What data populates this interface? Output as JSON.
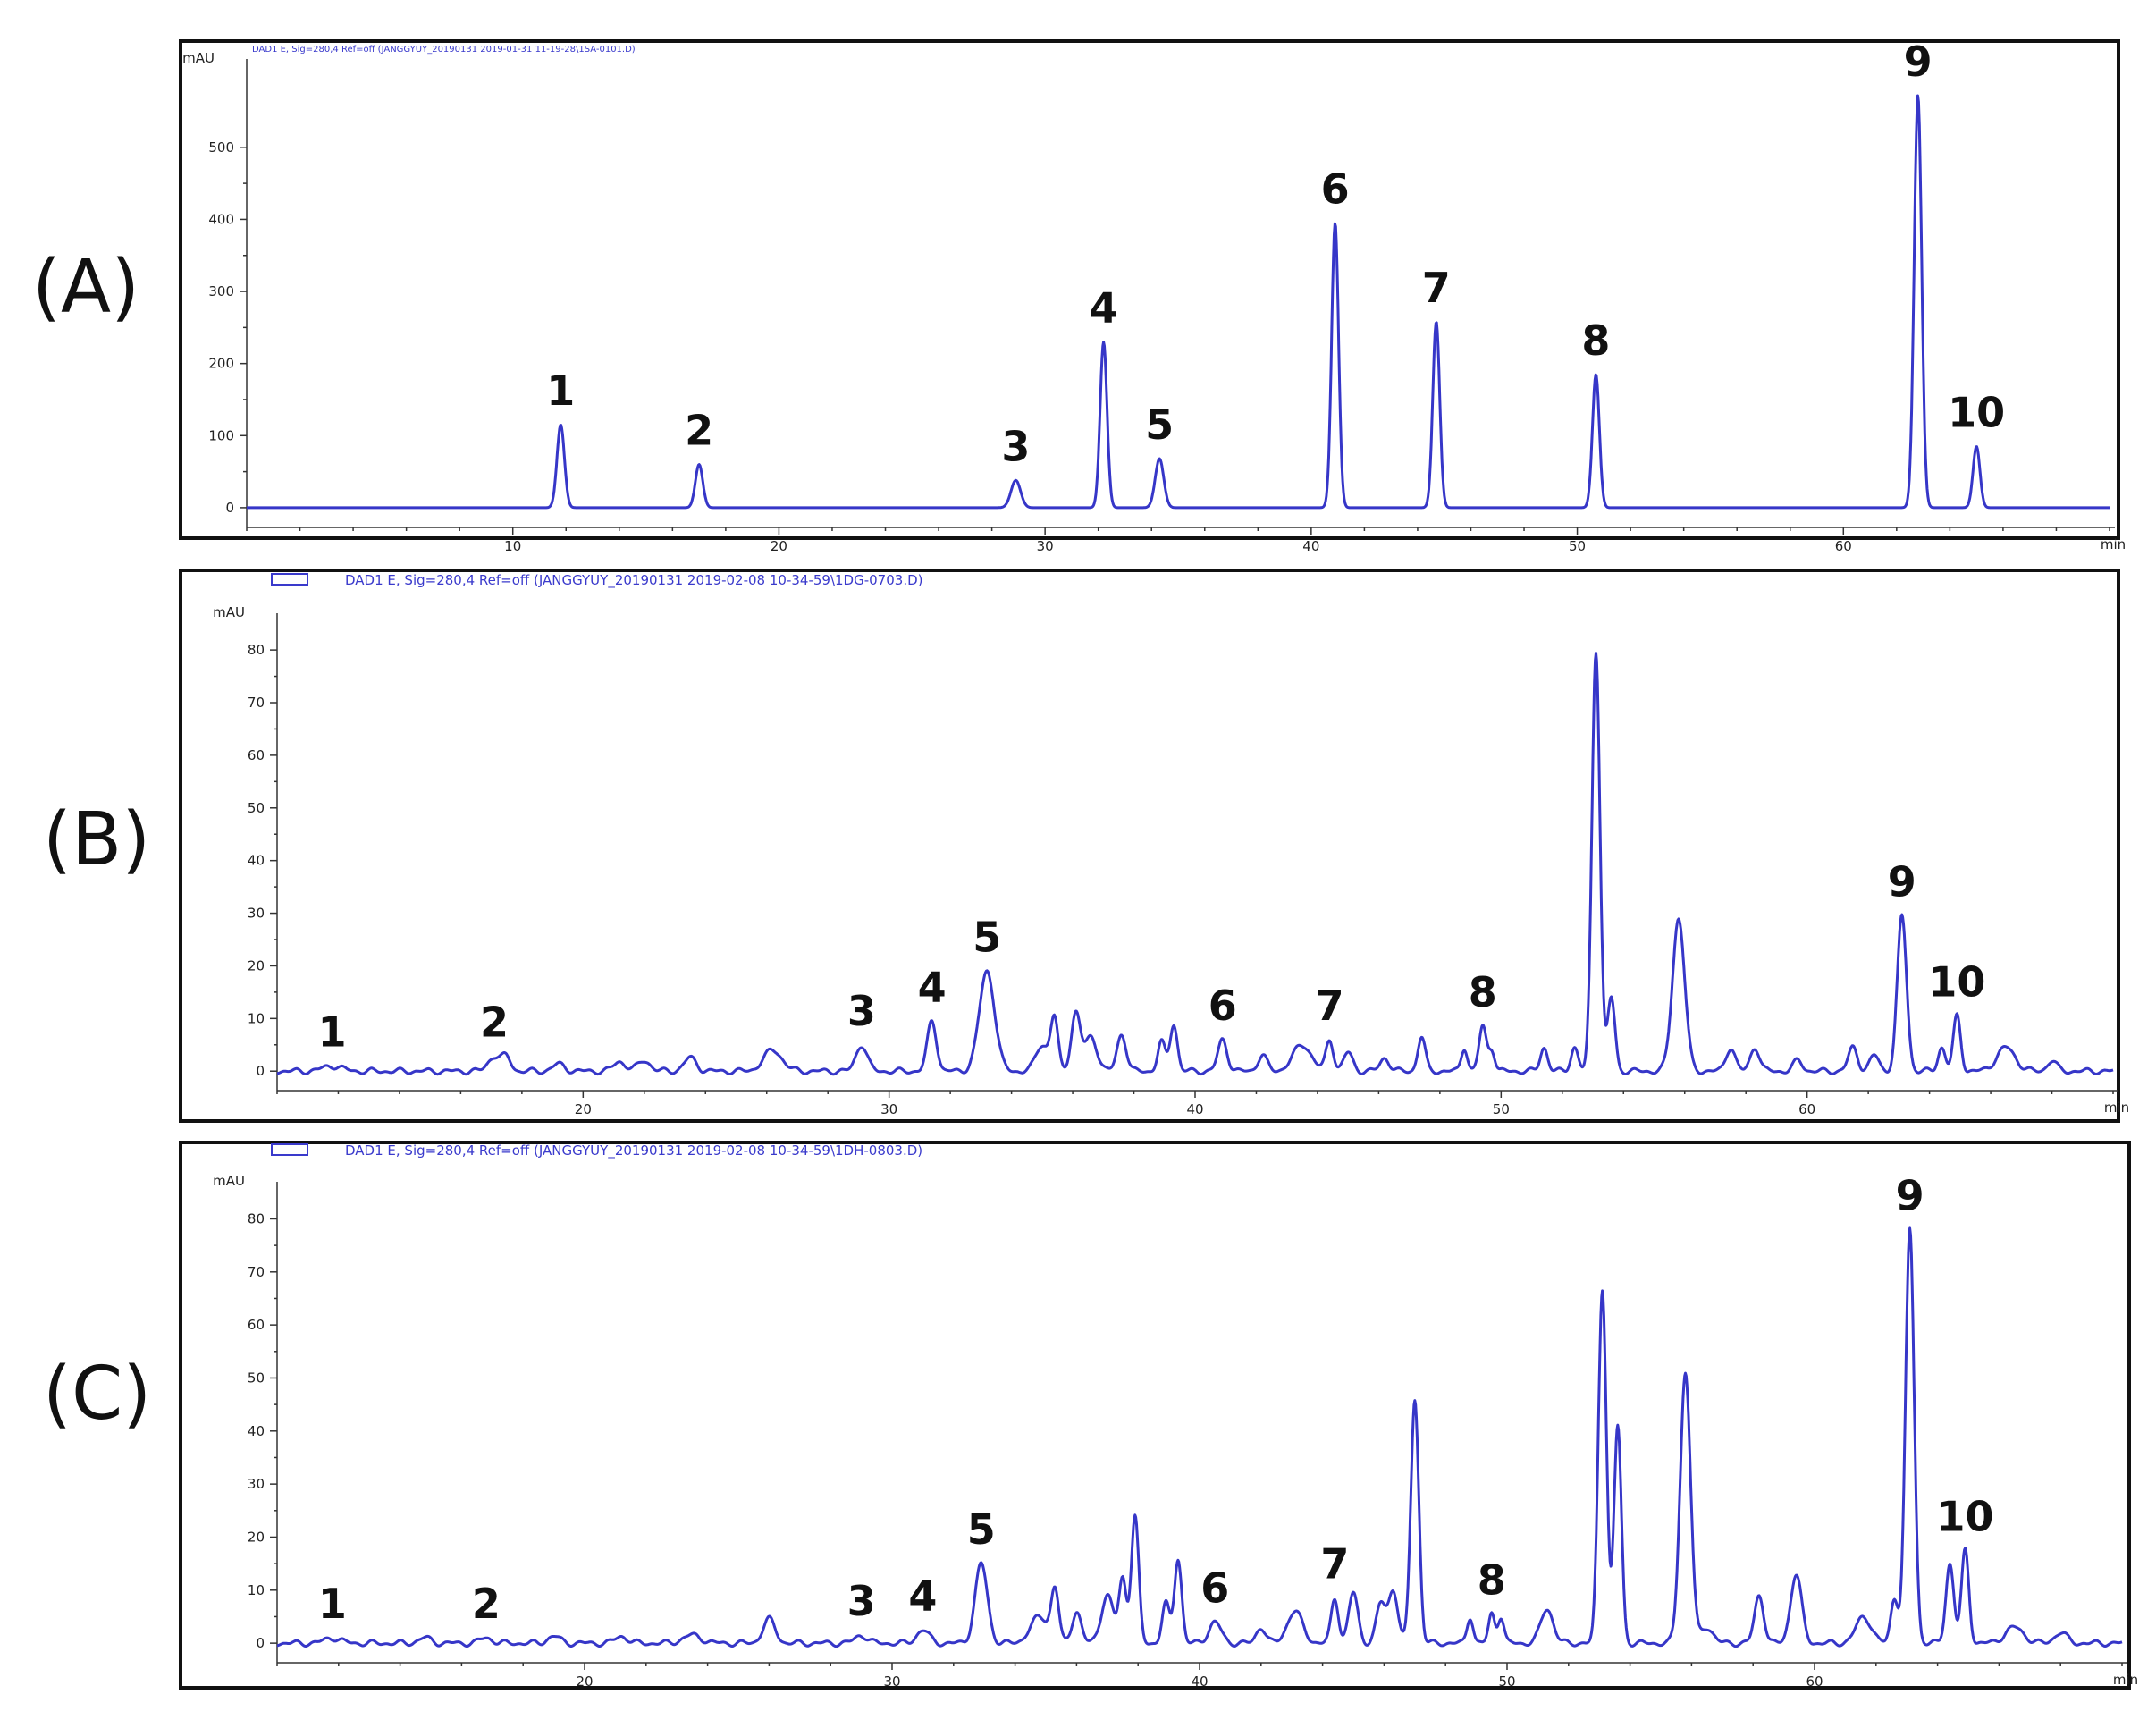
{
  "chart_data": [
    {
      "type": "line",
      "panel": "(A)",
      "header": "DAD1 E, Sig=280,4 Ref=off (JANGGYUY_20190131 2019-01-31 11-19-28\\1SA-0101.D)",
      "ylabel": "mAU",
      "xlabel": "min",
      "xlim": [
        0,
        70
      ],
      "ylim": [
        -15,
        630
      ],
      "xticks": [
        10,
        20,
        30,
        40,
        50,
        60
      ],
      "yticks": [
        0,
        100,
        200,
        300,
        400,
        500
      ],
      "peaks": [
        {
          "label": "1",
          "x": 11.8,
          "y": 115,
          "w": 0.14
        },
        {
          "label": "2",
          "x": 17.0,
          "y": 60,
          "w": 0.14
        },
        {
          "label": "3",
          "x": 28.9,
          "y": 38,
          "w": 0.18
        },
        {
          "label": "4",
          "x": 32.2,
          "y": 230,
          "w": 0.13
        },
        {
          "label": "5",
          "x": 34.3,
          "y": 68,
          "w": 0.16
        },
        {
          "label": "6",
          "x": 40.9,
          "y": 395,
          "w": 0.13
        },
        {
          "label": "7",
          "x": 44.7,
          "y": 258,
          "w": 0.13
        },
        {
          "label": "8",
          "x": 50.7,
          "y": 185,
          "w": 0.13
        },
        {
          "label": "9",
          "x": 62.8,
          "y": 572,
          "w": 0.14
        },
        {
          "label": "10",
          "x": 65.0,
          "y": 85,
          "w": 0.13
        }
      ],
      "minor_peaks": []
    },
    {
      "type": "line",
      "panel": "(B)",
      "header": "DAD1 E, Sig=280,4 Ref=off (JANGGYUY_20190131 2019-02-08 10-34-59\\1DG-0703.D)",
      "ylabel": "mAU",
      "xlabel": "min",
      "xlim": [
        10,
        70
      ],
      "ylim": [
        -2,
        88
      ],
      "xticks": [
        20,
        30,
        40,
        50,
        60
      ],
      "yticks": [
        0,
        10,
        20,
        30,
        40,
        50,
        60,
        70,
        80
      ],
      "peaks": [
        {
          "label": "1",
          "x": 11.8,
          "y": 1.0,
          "w": 0.3
        },
        {
          "label": "2",
          "x": 17.1,
          "y": 2.8,
          "w": 0.2
        },
        {
          "label": "3",
          "x": 29.1,
          "y": 5.0,
          "w": 0.18
        },
        {
          "label": "4",
          "x": 31.4,
          "y": 9.5,
          "w": 0.15
        },
        {
          "label": "5",
          "x": 33.2,
          "y": 19.0,
          "w": 0.25
        },
        {
          "label": "6",
          "x": 40.9,
          "y": 6.0,
          "w": 0.15
        },
        {
          "label": "7",
          "x": 44.4,
          "y": 6.0,
          "w": 0.12
        },
        {
          "label": "8",
          "x": 49.4,
          "y": 8.5,
          "w": 0.12
        },
        {
          "label": "9",
          "x": 63.1,
          "y": 29.5,
          "w": 0.15
        },
        {
          "label": "10",
          "x": 64.9,
          "y": 10.5,
          "w": 0.12
        }
      ],
      "minor_peaks": [
        [
          17.5,
          2.5,
          0.15
        ],
        [
          19.2,
          1.3,
          0.2
        ],
        [
          21.2,
          1.8,
          0.2
        ],
        [
          22.0,
          2.0,
          0.2
        ],
        [
          23.5,
          2.5,
          0.2
        ],
        [
          26.2,
          4.0,
          0.3
        ],
        [
          35.0,
          5.0,
          0.2
        ],
        [
          35.4,
          10.0,
          0.12
        ],
        [
          36.1,
          11.0,
          0.15
        ],
        [
          36.6,
          6.5,
          0.2
        ],
        [
          37.6,
          7.0,
          0.15
        ],
        [
          38.9,
          5.5,
          0.12
        ],
        [
          39.3,
          9.0,
          0.12
        ],
        [
          42.2,
          3.0,
          0.15
        ],
        [
          43.5,
          5.0,
          0.3
        ],
        [
          45.0,
          3.5,
          0.15
        ],
        [
          46.2,
          2.5,
          0.15
        ],
        [
          47.4,
          6.5,
          0.12
        ],
        [
          48.8,
          4.5,
          0.1
        ],
        [
          49.7,
          4.0,
          0.1
        ],
        [
          51.4,
          4.5,
          0.12
        ],
        [
          52.4,
          4.5,
          0.12
        ],
        [
          53.1,
          80.0,
          0.13
        ],
        [
          53.6,
          14.0,
          0.12
        ],
        [
          55.8,
          29.0,
          0.2
        ],
        [
          57.5,
          4.5,
          0.15
        ],
        [
          58.3,
          4.5,
          0.15
        ],
        [
          59.7,
          2.0,
          0.15
        ],
        [
          61.5,
          4.5,
          0.15
        ],
        [
          62.2,
          3.0,
          0.15
        ],
        [
          64.4,
          4.5,
          0.12
        ],
        [
          66.5,
          4.5,
          0.3
        ],
        [
          68.0,
          2.0,
          0.15
        ]
      ]
    },
    {
      "type": "line",
      "panel": "(C)",
      "header": "DAD1 E, Sig=280,4 Ref=off (JANGGYUY_20190131 2019-02-08 10-34-59\\1DH-0803.D)",
      "ylabel": "mAU",
      "xlabel": "min",
      "xlim": [
        10,
        70
      ],
      "ylim": [
        -2,
        88
      ],
      "xticks": [
        20,
        30,
        40,
        50,
        60
      ],
      "yticks": [
        0,
        10,
        20,
        30,
        40,
        50,
        60,
        70,
        80
      ],
      "peaks": [
        {
          "label": "1",
          "x": 11.8,
          "y": 1.0,
          "w": 0.25
        },
        {
          "label": "2",
          "x": 16.8,
          "y": 1.0,
          "w": 0.2
        },
        {
          "label": "3",
          "x": 29.0,
          "y": 1.5,
          "w": 0.2
        },
        {
          "label": "4",
          "x": 31.0,
          "y": 2.5,
          "w": 0.2
        },
        {
          "label": "5",
          "x": 32.9,
          "y": 15.0,
          "w": 0.2
        },
        {
          "label": "6",
          "x": 40.5,
          "y": 4.0,
          "w": 0.2
        },
        {
          "label": "7",
          "x": 44.4,
          "y": 8.5,
          "w": 0.12
        },
        {
          "label": "8",
          "x": 49.5,
          "y": 5.5,
          "w": 0.1
        },
        {
          "label": "9",
          "x": 63.1,
          "y": 78.0,
          "w": 0.14
        },
        {
          "label": "10",
          "x": 64.9,
          "y": 17.5,
          "w": 0.12
        }
      ],
      "minor_peaks": [
        [
          14.8,
          1.0,
          0.2
        ],
        [
          19.0,
          1.3,
          0.2
        ],
        [
          21.2,
          1.3,
          0.2
        ],
        [
          23.5,
          1.5,
          0.3
        ],
        [
          26.0,
          4.5,
          0.2
        ],
        [
          34.8,
          5.0,
          0.3
        ],
        [
          35.3,
          9.5,
          0.12
        ],
        [
          36.0,
          6.0,
          0.15
        ],
        [
          37.0,
          9.0,
          0.2
        ],
        [
          37.5,
          12.0,
          0.12
        ],
        [
          37.9,
          24.0,
          0.12
        ],
        [
          38.9,
          7.5,
          0.12
        ],
        [
          39.3,
          16.0,
          0.12
        ],
        [
          42.0,
          3.0,
          0.15
        ],
        [
          43.1,
          6.0,
          0.25
        ],
        [
          45.0,
          9.5,
          0.15
        ],
        [
          45.9,
          7.5,
          0.15
        ],
        [
          46.3,
          10.0,
          0.15
        ],
        [
          47.0,
          46.0,
          0.13
        ],
        [
          48.8,
          5.0,
          0.1
        ],
        [
          49.8,
          5.0,
          0.1
        ],
        [
          51.3,
          6.5,
          0.2
        ],
        [
          53.1,
          67.0,
          0.13
        ],
        [
          53.6,
          41.0,
          0.12
        ],
        [
          55.8,
          51.0,
          0.17
        ],
        [
          56.5,
          3.0,
          0.2
        ],
        [
          58.2,
          9.0,
          0.15
        ],
        [
          59.4,
          13.0,
          0.18
        ],
        [
          61.6,
          5.0,
          0.25
        ],
        [
          62.6,
          8.5,
          0.12
        ],
        [
          64.4,
          15.0,
          0.13
        ],
        [
          66.5,
          3.0,
          0.3
        ],
        [
          68.0,
          2.0,
          0.2
        ]
      ]
    }
  ]
}
